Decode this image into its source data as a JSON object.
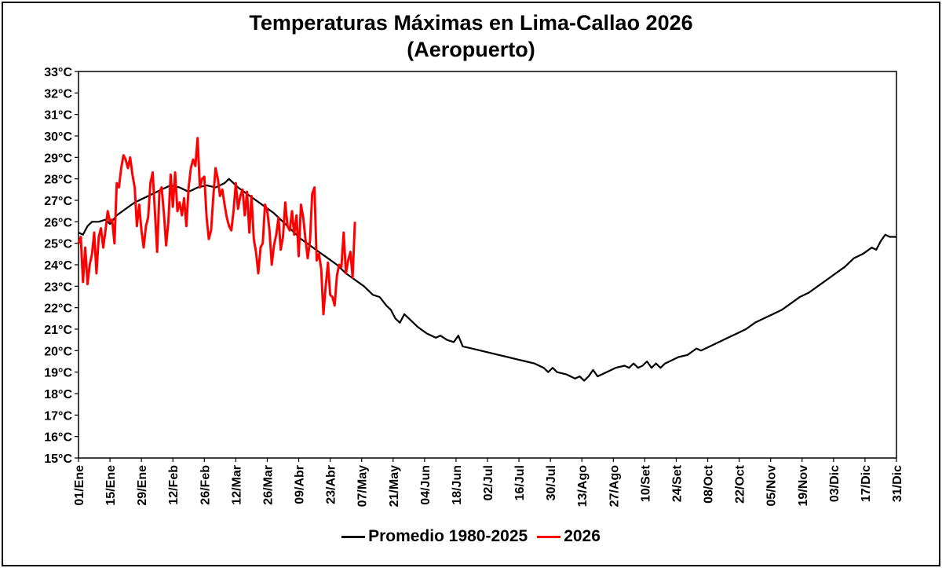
{
  "chart_data": {
    "type": "line",
    "title": "Temperaturas Máximas en Lima-Callao 2026",
    "subtitle": "(Aeropuerto)",
    "xlabel": "",
    "ylabel": "",
    "ylim": [
      15,
      33
    ],
    "xlim": [
      1,
      365
    ],
    "grid": false,
    "legend_position": "bottom",
    "y_ticks": [
      {
        "value": 15,
        "label": "15°C"
      },
      {
        "value": 16,
        "label": "16°C"
      },
      {
        "value": 17,
        "label": "17°C"
      },
      {
        "value": 18,
        "label": "18°C"
      },
      {
        "value": 19,
        "label": "19°C"
      },
      {
        "value": 20,
        "label": "20°C"
      },
      {
        "value": 21,
        "label": "21°C"
      },
      {
        "value": 22,
        "label": "22°C"
      },
      {
        "value": 23,
        "label": "23°C"
      },
      {
        "value": 24,
        "label": "24°C"
      },
      {
        "value": 25,
        "label": "25°C"
      },
      {
        "value": 26,
        "label": "26°C"
      },
      {
        "value": 27,
        "label": "27°C"
      },
      {
        "value": 28,
        "label": "28°C"
      },
      {
        "value": 29,
        "label": "29°C"
      },
      {
        "value": 30,
        "label": "30°C"
      },
      {
        "value": 31,
        "label": "31°C"
      },
      {
        "value": 32,
        "label": "32°C"
      },
      {
        "value": 33,
        "label": "33°C"
      }
    ],
    "x_ticks": [
      {
        "day": 1,
        "label": "01/Ene"
      },
      {
        "day": 15,
        "label": "15/Ene"
      },
      {
        "day": 29,
        "label": "29/Ene"
      },
      {
        "day": 43,
        "label": "12/Feb"
      },
      {
        "day": 57,
        "label": "26/Feb"
      },
      {
        "day": 71,
        "label": "12/Mar"
      },
      {
        "day": 85,
        "label": "26/Mar"
      },
      {
        "day": 99,
        "label": "09/Abr"
      },
      {
        "day": 113,
        "label": "23/Abr"
      },
      {
        "day": 127,
        "label": "07/May"
      },
      {
        "day": 141,
        "label": "21/May"
      },
      {
        "day": 155,
        "label": "04/Jun"
      },
      {
        "day": 169,
        "label": "18/Jun"
      },
      {
        "day": 183,
        "label": "02/Jul"
      },
      {
        "day": 197,
        "label": "16/Jul"
      },
      {
        "day": 211,
        "label": "30/Jul"
      },
      {
        "day": 225,
        "label": "13/Ago"
      },
      {
        "day": 239,
        "label": "27/Ago"
      },
      {
        "day": 253,
        "label": "10/Set"
      },
      {
        "day": 267,
        "label": "24/Set"
      },
      {
        "day": 281,
        "label": "08/Oct"
      },
      {
        "day": 295,
        "label": "22/Oct"
      },
      {
        "day": 309,
        "label": "05/Nov"
      },
      {
        "day": 323,
        "label": "19/Nov"
      },
      {
        "day": 337,
        "label": "03/Dic"
      },
      {
        "day": 351,
        "label": "17/Dic"
      },
      {
        "day": 365,
        "label": "31/Dic"
      }
    ],
    "series": [
      {
        "name": "Promedio 1980-2025",
        "color": "#000000",
        "points": [
          [
            1,
            25.5
          ],
          [
            3,
            25.4
          ],
          [
            5,
            25.8
          ],
          [
            7,
            26.0
          ],
          [
            10,
            26.0
          ],
          [
            13,
            26.1
          ],
          [
            15,
            25.9
          ],
          [
            18,
            26.3
          ],
          [
            22,
            26.6
          ],
          [
            26,
            26.9
          ],
          [
            30,
            27.1
          ],
          [
            34,
            27.3
          ],
          [
            38,
            27.5
          ],
          [
            42,
            27.7
          ],
          [
            46,
            27.6
          ],
          [
            50,
            27.4
          ],
          [
            54,
            27.6
          ],
          [
            58,
            27.7
          ],
          [
            62,
            27.6
          ],
          [
            66,
            27.8
          ],
          [
            68,
            28.0
          ],
          [
            72,
            27.6
          ],
          [
            76,
            27.3
          ],
          [
            80,
            27.0
          ],
          [
            84,
            26.7
          ],
          [
            88,
            26.4
          ],
          [
            92,
            26.0
          ],
          [
            96,
            25.6
          ],
          [
            100,
            25.2
          ],
          [
            104,
            24.9
          ],
          [
            108,
            24.6
          ],
          [
            112,
            24.3
          ],
          [
            116,
            24.0
          ],
          [
            120,
            23.6
          ],
          [
            124,
            23.3
          ],
          [
            128,
            23.0
          ],
          [
            132,
            22.6
          ],
          [
            135,
            22.5
          ],
          [
            138,
            22.1
          ],
          [
            140,
            21.9
          ],
          [
            142,
            21.5
          ],
          [
            144,
            21.3
          ],
          [
            146,
            21.7
          ],
          [
            148,
            21.5
          ],
          [
            152,
            21.1
          ],
          [
            156,
            20.8
          ],
          [
            160,
            20.6
          ],
          [
            162,
            20.7
          ],
          [
            165,
            20.5
          ],
          [
            168,
            20.4
          ],
          [
            170,
            20.7
          ],
          [
            172,
            20.2
          ],
          [
            176,
            20.1
          ],
          [
            180,
            20.0
          ],
          [
            184,
            19.9
          ],
          [
            188,
            19.8
          ],
          [
            192,
            19.7
          ],
          [
            196,
            19.6
          ],
          [
            200,
            19.5
          ],
          [
            204,
            19.4
          ],
          [
            208,
            19.2
          ],
          [
            210,
            19.0
          ],
          [
            212,
            19.2
          ],
          [
            214,
            19.0
          ],
          [
            218,
            18.9
          ],
          [
            222,
            18.7
          ],
          [
            224,
            18.8
          ],
          [
            226,
            18.6
          ],
          [
            228,
            18.8
          ],
          [
            230,
            19.1
          ],
          [
            232,
            18.8
          ],
          [
            236,
            19.0
          ],
          [
            240,
            19.2
          ],
          [
            244,
            19.3
          ],
          [
            246,
            19.2
          ],
          [
            248,
            19.4
          ],
          [
            250,
            19.2
          ],
          [
            252,
            19.3
          ],
          [
            254,
            19.5
          ],
          [
            256,
            19.2
          ],
          [
            258,
            19.4
          ],
          [
            260,
            19.2
          ],
          [
            262,
            19.4
          ],
          [
            264,
            19.5
          ],
          [
            268,
            19.7
          ],
          [
            272,
            19.8
          ],
          [
            276,
            20.1
          ],
          [
            278,
            20.0
          ],
          [
            282,
            20.2
          ],
          [
            286,
            20.4
          ],
          [
            290,
            20.6
          ],
          [
            294,
            20.8
          ],
          [
            298,
            21.0
          ],
          [
            302,
            21.3
          ],
          [
            306,
            21.5
          ],
          [
            310,
            21.7
          ],
          [
            314,
            21.9
          ],
          [
            318,
            22.2
          ],
          [
            322,
            22.5
          ],
          [
            326,
            22.7
          ],
          [
            330,
            23.0
          ],
          [
            334,
            23.3
          ],
          [
            338,
            23.6
          ],
          [
            342,
            23.9
          ],
          [
            346,
            24.3
          ],
          [
            350,
            24.5
          ],
          [
            354,
            24.8
          ],
          [
            356,
            24.7
          ],
          [
            358,
            25.1
          ],
          [
            360,
            25.4
          ],
          [
            362,
            25.3
          ],
          [
            365,
            25.3
          ]
        ]
      },
      {
        "name": "2026",
        "color": "#ff0000",
        "points": [
          [
            1,
            25.0
          ],
          [
            2,
            25.3
          ],
          [
            3,
            23.2
          ],
          [
            4,
            24.8
          ],
          [
            5,
            23.1
          ],
          [
            6,
            24.0
          ],
          [
            7,
            24.5
          ],
          [
            8,
            25.5
          ],
          [
            9,
            23.6
          ],
          [
            10,
            25.3
          ],
          [
            11,
            25.7
          ],
          [
            12,
            24.8
          ],
          [
            13,
            25.6
          ],
          [
            14,
            26.5
          ],
          [
            15,
            26.0
          ],
          [
            16,
            26.1
          ],
          [
            17,
            25.0
          ],
          [
            18,
            27.8
          ],
          [
            19,
            27.6
          ],
          [
            20,
            28.5
          ],
          [
            21,
            29.1
          ],
          [
            22,
            28.9
          ],
          [
            23,
            28.5
          ],
          [
            24,
            29.0
          ],
          [
            25,
            28.2
          ],
          [
            26,
            27.6
          ],
          [
            27,
            25.8
          ],
          [
            28,
            26.8
          ],
          [
            29,
            25.6
          ],
          [
            30,
            24.8
          ],
          [
            31,
            25.8
          ],
          [
            32,
            26.2
          ],
          [
            33,
            27.8
          ],
          [
            34,
            28.3
          ],
          [
            35,
            26.5
          ],
          [
            36,
            24.6
          ],
          [
            37,
            27.4
          ],
          [
            38,
            27.6
          ],
          [
            39,
            26.4
          ],
          [
            40,
            24.9
          ],
          [
            41,
            26.0
          ],
          [
            42,
            28.2
          ],
          [
            43,
            26.7
          ],
          [
            44,
            28.3
          ],
          [
            45,
            26.5
          ],
          [
            46,
            26.9
          ],
          [
            47,
            26.3
          ],
          [
            48,
            27.1
          ],
          [
            49,
            25.8
          ],
          [
            50,
            27.6
          ],
          [
            51,
            28.5
          ],
          [
            52,
            28.9
          ],
          [
            53,
            28.6
          ],
          [
            54,
            29.9
          ],
          [
            55,
            27.6
          ],
          [
            56,
            28.0
          ],
          [
            57,
            28.1
          ],
          [
            58,
            26.2
          ],
          [
            59,
            25.2
          ],
          [
            60,
            25.6
          ],
          [
            61,
            27.2
          ],
          [
            62,
            28.5
          ],
          [
            63,
            28.0
          ],
          [
            64,
            27.2
          ],
          [
            65,
            27.5
          ],
          [
            66,
            26.8
          ],
          [
            67,
            26.2
          ],
          [
            68,
            25.8
          ],
          [
            69,
            25.6
          ],
          [
            70,
            26.5
          ],
          [
            71,
            27.8
          ],
          [
            72,
            26.6
          ],
          [
            73,
            27.2
          ],
          [
            74,
            27.5
          ],
          [
            75,
            26.3
          ],
          [
            76,
            27.4
          ],
          [
            77,
            25.5
          ],
          [
            78,
            27.2
          ],
          [
            79,
            25.2
          ],
          [
            80,
            24.6
          ],
          [
            81,
            23.6
          ],
          [
            82,
            24.8
          ],
          [
            83,
            25.0
          ],
          [
            84,
            26.8
          ],
          [
            85,
            26.5
          ],
          [
            86,
            25.6
          ],
          [
            87,
            24.0
          ],
          [
            88,
            24.9
          ],
          [
            89,
            25.4
          ],
          [
            90,
            26.2
          ],
          [
            91,
            24.7
          ],
          [
            92,
            25.3
          ],
          [
            93,
            26.9
          ],
          [
            94,
            25.8
          ],
          [
            95,
            25.6
          ],
          [
            96,
            26.5
          ],
          [
            97,
            25.4
          ],
          [
            98,
            26.3
          ],
          [
            99,
            24.4
          ],
          [
            100,
            26.8
          ],
          [
            101,
            26.2
          ],
          [
            102,
            25.2
          ],
          [
            103,
            24.3
          ],
          [
            104,
            25.1
          ],
          [
            105,
            27.3
          ],
          [
            106,
            27.6
          ],
          [
            107,
            24.2
          ],
          [
            108,
            24.5
          ],
          [
            109,
            23.8
          ],
          [
            110,
            21.7
          ],
          [
            111,
            23.0
          ],
          [
            112,
            24.1
          ],
          [
            113,
            22.6
          ],
          [
            114,
            22.5
          ],
          [
            115,
            22.1
          ],
          [
            116,
            23.5
          ],
          [
            117,
            24.0
          ],
          [
            118,
            23.9
          ],
          [
            119,
            25.5
          ],
          [
            120,
            23.6
          ],
          [
            121,
            24.2
          ],
          [
            122,
            24.6
          ],
          [
            123,
            23.4
          ],
          [
            124,
            26.0
          ]
        ]
      }
    ]
  }
}
